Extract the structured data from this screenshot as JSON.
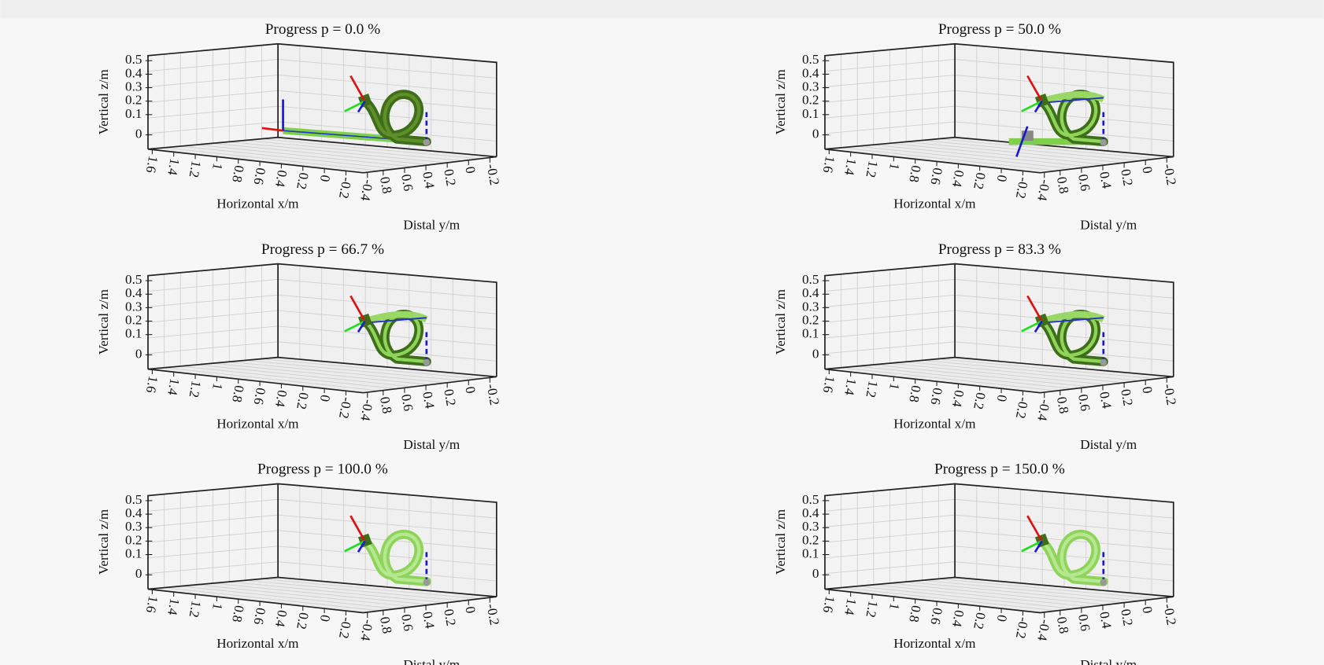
{
  "panels": [
    {
      "title": "Progress p = 0.0 %",
      "z_label": "Vertical z/m",
      "x_label": "Horizontal x/m",
      "y_label": "Distal y/m",
      "z_ticks": [
        "0.5",
        "0.4",
        "0.3",
        "0.2",
        "0.1",
        "0"
      ],
      "x_ticks": [
        "1.6",
        "1.4",
        "1.2",
        "1",
        "0.8",
        "0.6",
        "0.4",
        "0.2",
        "0",
        "-0.2",
        "-0.4"
      ],
      "y_ticks": [
        "0.8",
        "0.6",
        "0.4",
        "0.2",
        "0",
        "-0.2"
      ]
    },
    {
      "title": "Progress p = 50.0 %",
      "z_label": "Vertical z/m",
      "x_label": "Horizontal x/m",
      "y_label": "Distal y/m",
      "z_ticks": [
        "0.5",
        "0.4",
        "0.3",
        "0.2",
        "0.1",
        "0"
      ],
      "x_ticks": [
        "1.6",
        "1.4",
        "1.2",
        "1",
        "0.8",
        "0.6",
        "0.4",
        "0.2",
        "0",
        "-0.2",
        "-0.4"
      ],
      "y_ticks": [
        "0.8",
        "0.6",
        "0.4",
        "0.2",
        "0",
        "-0.2"
      ]
    },
    {
      "title": "Progress p = 66.7 %",
      "z_label": "Vertical z/m",
      "x_label": "Horizontal x/m",
      "y_label": "Distal y/m",
      "z_ticks": [
        "0.5",
        "0.4",
        "0.3",
        "0.2",
        "0.1",
        "0"
      ],
      "x_ticks": [
        "1.6",
        "1.4",
        "1.2",
        "1",
        "0.8",
        "0.6",
        "0.4",
        "0.2",
        "0",
        "-0.2",
        "-0.4"
      ],
      "y_ticks": [
        "0.8",
        "0.6",
        "0.4",
        "0.2",
        "0",
        "-0.2"
      ]
    },
    {
      "title": "Progress p = 83.3 %",
      "z_label": "Vertical z/m",
      "x_label": "Horizontal x/m",
      "y_label": "Distal y/m",
      "z_ticks": [
        "0.5",
        "0.4",
        "0.3",
        "0.2",
        "0.1",
        "0"
      ],
      "x_ticks": [
        "1.6",
        "1.4",
        "1.2",
        "1",
        "0.8",
        "0.6",
        "0.4",
        "0.2",
        "0",
        "-0.2",
        "-0.4"
      ],
      "y_ticks": [
        "0.8",
        "0.6",
        "0.4",
        "0.2",
        "0",
        "-0.2"
      ]
    },
    {
      "title": "Progress p = 100.0 %",
      "z_label": "Vertical z/m",
      "x_label": "Horizontal x/m",
      "y_label": "Distal y/m",
      "z_ticks": [
        "0.5",
        "0.4",
        "0.3",
        "0.2",
        "0.1",
        "0"
      ],
      "x_ticks": [
        "1.6",
        "1.4",
        "1.2",
        "1",
        "0.8",
        "0.6",
        "0.4",
        "0.2",
        "0",
        "-0.2",
        "-0.4"
      ],
      "y_ticks": [
        "0.8",
        "0.6",
        "0.4",
        "0.2",
        "0",
        "-0.2"
      ]
    },
    {
      "title": "Progress p = 150.0 %",
      "z_label": "Vertical z/m",
      "x_label": "Horizontal x/m",
      "y_label": "Distal y/m",
      "z_ticks": [
        "0.5",
        "0.4",
        "0.3",
        "0.2",
        "0.1",
        "0"
      ],
      "x_ticks": [
        "1.6",
        "1.4",
        "1.2",
        "1",
        "0.8",
        "0.6",
        "0.4",
        "0.2",
        "0",
        "-0.2",
        "-0.4"
      ],
      "y_ticks": [
        "0.8",
        "0.6",
        "0.4",
        "0.2",
        "0",
        "-0.2"
      ]
    }
  ]
}
